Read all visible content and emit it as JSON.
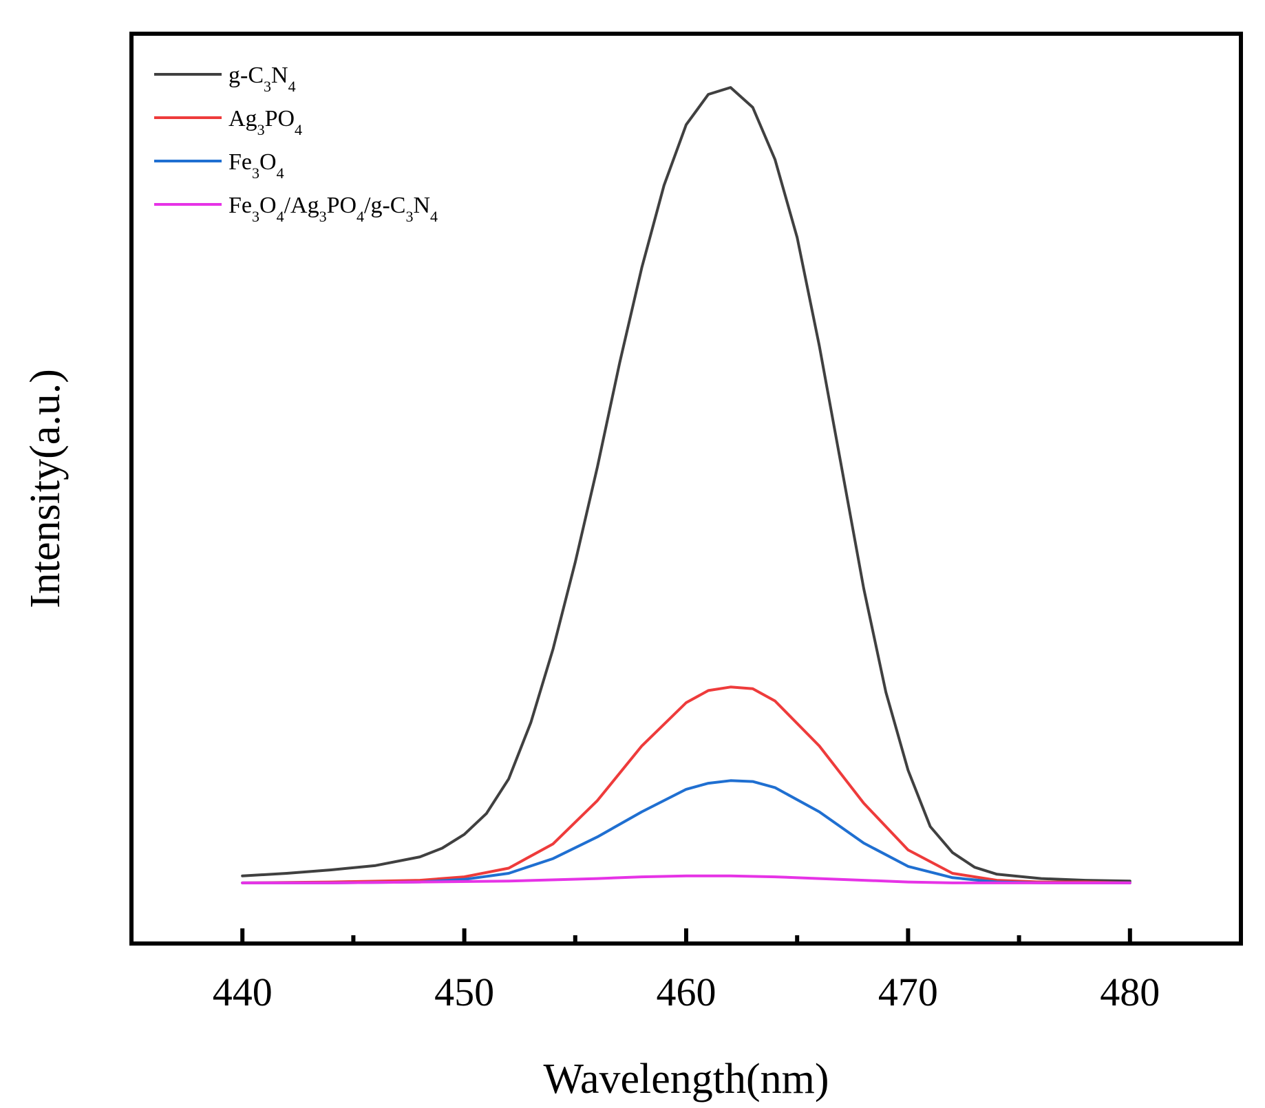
{
  "chart_data": {
    "type": "line",
    "title": "",
    "xlabel": "Wavelength(nm)",
    "ylabel": "Intensity(a.u.)",
    "xlim": [
      435,
      485
    ],
    "ylim": [
      -7,
      98
    ],
    "xticks": [
      440,
      450,
      460,
      470,
      480
    ],
    "minor_xticks": [
      445,
      455,
      465,
      475
    ],
    "yticks_shown": false,
    "grid": false,
    "legend_position": "top-left",
    "series": [
      {
        "name": "g-C3N4",
        "label_parts": [
          [
            "g-C",
            ""
          ],
          [
            "3",
            "sub"
          ],
          [
            "N",
            ""
          ],
          [
            "4",
            "sub"
          ]
        ],
        "color": "#404040",
        "x": [
          440,
          442,
          444,
          446,
          448,
          449,
          450,
          451,
          452,
          453,
          454,
          455,
          456,
          457,
          458,
          459,
          460,
          461,
          462,
          463,
          464,
          465,
          466,
          467,
          468,
          469,
          470,
          471,
          472,
          473,
          474,
          476,
          478,
          480
        ],
        "y": [
          0.8,
          1.1,
          1.5,
          2.0,
          3.0,
          4.0,
          5.6,
          8.0,
          12.0,
          18.5,
          27.0,
          37.0,
          48.0,
          60.0,
          71.0,
          80.5,
          87.5,
          91.0,
          91.8,
          89.5,
          83.5,
          74.5,
          62.0,
          48.0,
          34.0,
          22.0,
          13.0,
          6.5,
          3.5,
          1.8,
          1.0,
          0.5,
          0.3,
          0.2
        ]
      },
      {
        "name": "Ag3PO4",
        "label_parts": [
          [
            "Ag",
            ""
          ],
          [
            "3",
            "sub"
          ],
          [
            "PO",
            ""
          ],
          [
            "4",
            "sub"
          ]
        ],
        "color": "#ee3b3b",
        "x": [
          440,
          444,
          448,
          450,
          452,
          454,
          456,
          458,
          460,
          461,
          462,
          463,
          464,
          466,
          468,
          470,
          472,
          474,
          476,
          478,
          480
        ],
        "y": [
          0,
          0.1,
          0.3,
          0.7,
          1.7,
          4.5,
          9.5,
          15.8,
          20.8,
          22.2,
          22.6,
          22.4,
          21.0,
          15.8,
          9.2,
          3.8,
          1.1,
          0.3,
          0.1,
          0.1,
          0
        ]
      },
      {
        "name": "Fe3O4",
        "label_parts": [
          [
            "Fe",
            ""
          ],
          [
            "3",
            "sub"
          ],
          [
            "O",
            ""
          ],
          [
            "4",
            "sub"
          ]
        ],
        "color": "#1f6fd1",
        "x": [
          440,
          444,
          448,
          450,
          452,
          454,
          456,
          458,
          460,
          461,
          462,
          463,
          464,
          466,
          468,
          470,
          472,
          474,
          476,
          478,
          480
        ],
        "y": [
          0,
          0,
          0.1,
          0.4,
          1.1,
          2.8,
          5.3,
          8.2,
          10.8,
          11.5,
          11.8,
          11.7,
          11.0,
          8.2,
          4.6,
          1.9,
          0.6,
          0.1,
          0,
          0,
          0
        ]
      },
      {
        "name": "Fe3O4/Ag3PO4/g-C3N4",
        "label_parts": [
          [
            "Fe",
            ""
          ],
          [
            "3",
            "sub"
          ],
          [
            "O",
            ""
          ],
          [
            "4",
            "sub"
          ],
          [
            "/Ag",
            ""
          ],
          [
            "3",
            "sub"
          ],
          [
            "PO",
            ""
          ],
          [
            "4",
            "sub"
          ],
          [
            "/g-C",
            ""
          ],
          [
            "3",
            "sub"
          ],
          [
            "N",
            ""
          ],
          [
            "4",
            "sub"
          ]
        ],
        "color": "#e633e6",
        "x": [
          440,
          444,
          448,
          452,
          456,
          458,
          460,
          462,
          464,
          466,
          468,
          470,
          472,
          476,
          480
        ],
        "y": [
          0,
          0,
          0.1,
          0.2,
          0.5,
          0.7,
          0.8,
          0.8,
          0.7,
          0.5,
          0.3,
          0.1,
          0,
          0,
          0
        ]
      }
    ]
  }
}
